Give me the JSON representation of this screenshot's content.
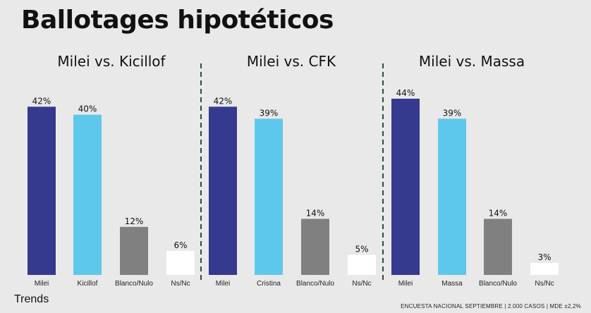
{
  "title": "Ballotages hipotéticos",
  "brand": "Trends",
  "footer": "ENCUESTA NACIONAL SEPTIEMBRE | 2.000 CASOS | MDE ±2,2%",
  "colors": {
    "milei": "#353a8f",
    "rival": "#5ec8ec",
    "blanco": "#808080",
    "nsnc": "#ffffff",
    "divider": "#2f4a3d"
  },
  "chart_data": [
    {
      "type": "bar",
      "title": "Milei vs. Kicillof",
      "categories": [
        "Milei",
        "Kicillof",
        "Blanco/Nulo",
        "Ns/Nc"
      ],
      "values": [
        42,
        40,
        12,
        6
      ],
      "labels": [
        "42%",
        "40%",
        "12%",
        "6%"
      ],
      "colors": [
        "#353a8f",
        "#5ec8ec",
        "#808080",
        "#ffffff"
      ],
      "ylim": [
        0,
        44
      ]
    },
    {
      "type": "bar",
      "title": "Milei vs. CFK",
      "categories": [
        "Milei",
        "Cristina",
        "Blanco/Nulo",
        "Ns/Nc"
      ],
      "values": [
        42,
        39,
        14,
        5
      ],
      "labels": [
        "42%",
        "39%",
        "14%",
        "5%"
      ],
      "colors": [
        "#353a8f",
        "#5ec8ec",
        "#808080",
        "#ffffff"
      ],
      "ylim": [
        0,
        44
      ]
    },
    {
      "type": "bar",
      "title": "Milei vs. Massa",
      "categories": [
        "Milei",
        "Massa",
        "Blanco/Nulo",
        "Ns/Nc"
      ],
      "values": [
        44,
        39,
        14,
        3
      ],
      "labels": [
        "44%",
        "39%",
        "14%",
        "3%"
      ],
      "colors": [
        "#353a8f",
        "#5ec8ec",
        "#808080",
        "#ffffff"
      ],
      "ylim": [
        0,
        44
      ]
    }
  ]
}
